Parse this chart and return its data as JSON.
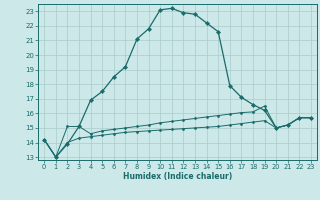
{
  "xlabel": "Humidex (Indice chaleur)",
  "ylabel": "",
  "bg_color": "#cce8e8",
  "line_color": "#1a6b6b",
  "grid_color": "#aacccc",
  "xlim": [
    -0.5,
    23.5
  ],
  "ylim": [
    12.8,
    23.5
  ],
  "yticks": [
    13,
    14,
    15,
    16,
    17,
    18,
    19,
    20,
    21,
    22,
    23
  ],
  "xticks": [
    0,
    1,
    2,
    3,
    4,
    5,
    6,
    7,
    8,
    9,
    10,
    11,
    12,
    13,
    14,
    15,
    16,
    17,
    18,
    19,
    20,
    21,
    22,
    23
  ],
  "series1_x": [
    0,
    1,
    2,
    3,
    4,
    5,
    6,
    7,
    8,
    9,
    10,
    11,
    12,
    13,
    14,
    15,
    16,
    17,
    18,
    19,
    20,
    21,
    22,
    23
  ],
  "series1_y": [
    14.2,
    13.0,
    13.9,
    15.1,
    16.9,
    17.5,
    18.5,
    19.2,
    21.1,
    21.8,
    23.1,
    23.2,
    22.9,
    22.8,
    22.2,
    21.6,
    17.9,
    17.1,
    16.6,
    16.2,
    15.0,
    15.2,
    15.7,
    15.7
  ],
  "series2_x": [
    0,
    1,
    2,
    3,
    4,
    5,
    6,
    7,
    8,
    9,
    10,
    11,
    12,
    13,
    14,
    15,
    16,
    17,
    18,
    19,
    20,
    21,
    22,
    23
  ],
  "series2_y": [
    14.2,
    13.0,
    15.1,
    15.1,
    14.6,
    14.8,
    14.9,
    15.0,
    15.1,
    15.2,
    15.35,
    15.45,
    15.55,
    15.65,
    15.75,
    15.85,
    15.95,
    16.05,
    16.1,
    16.5,
    15.0,
    15.2,
    15.7,
    15.7
  ],
  "series3_x": [
    0,
    1,
    2,
    3,
    4,
    5,
    6,
    7,
    8,
    9,
    10,
    11,
    12,
    13,
    14,
    15,
    16,
    17,
    18,
    19,
    20,
    21,
    22,
    23
  ],
  "series3_y": [
    14.2,
    13.0,
    14.0,
    14.3,
    14.4,
    14.5,
    14.6,
    14.7,
    14.75,
    14.8,
    14.85,
    14.9,
    14.95,
    15.0,
    15.05,
    15.1,
    15.2,
    15.3,
    15.4,
    15.5,
    15.0,
    15.2,
    15.7,
    15.7
  ]
}
